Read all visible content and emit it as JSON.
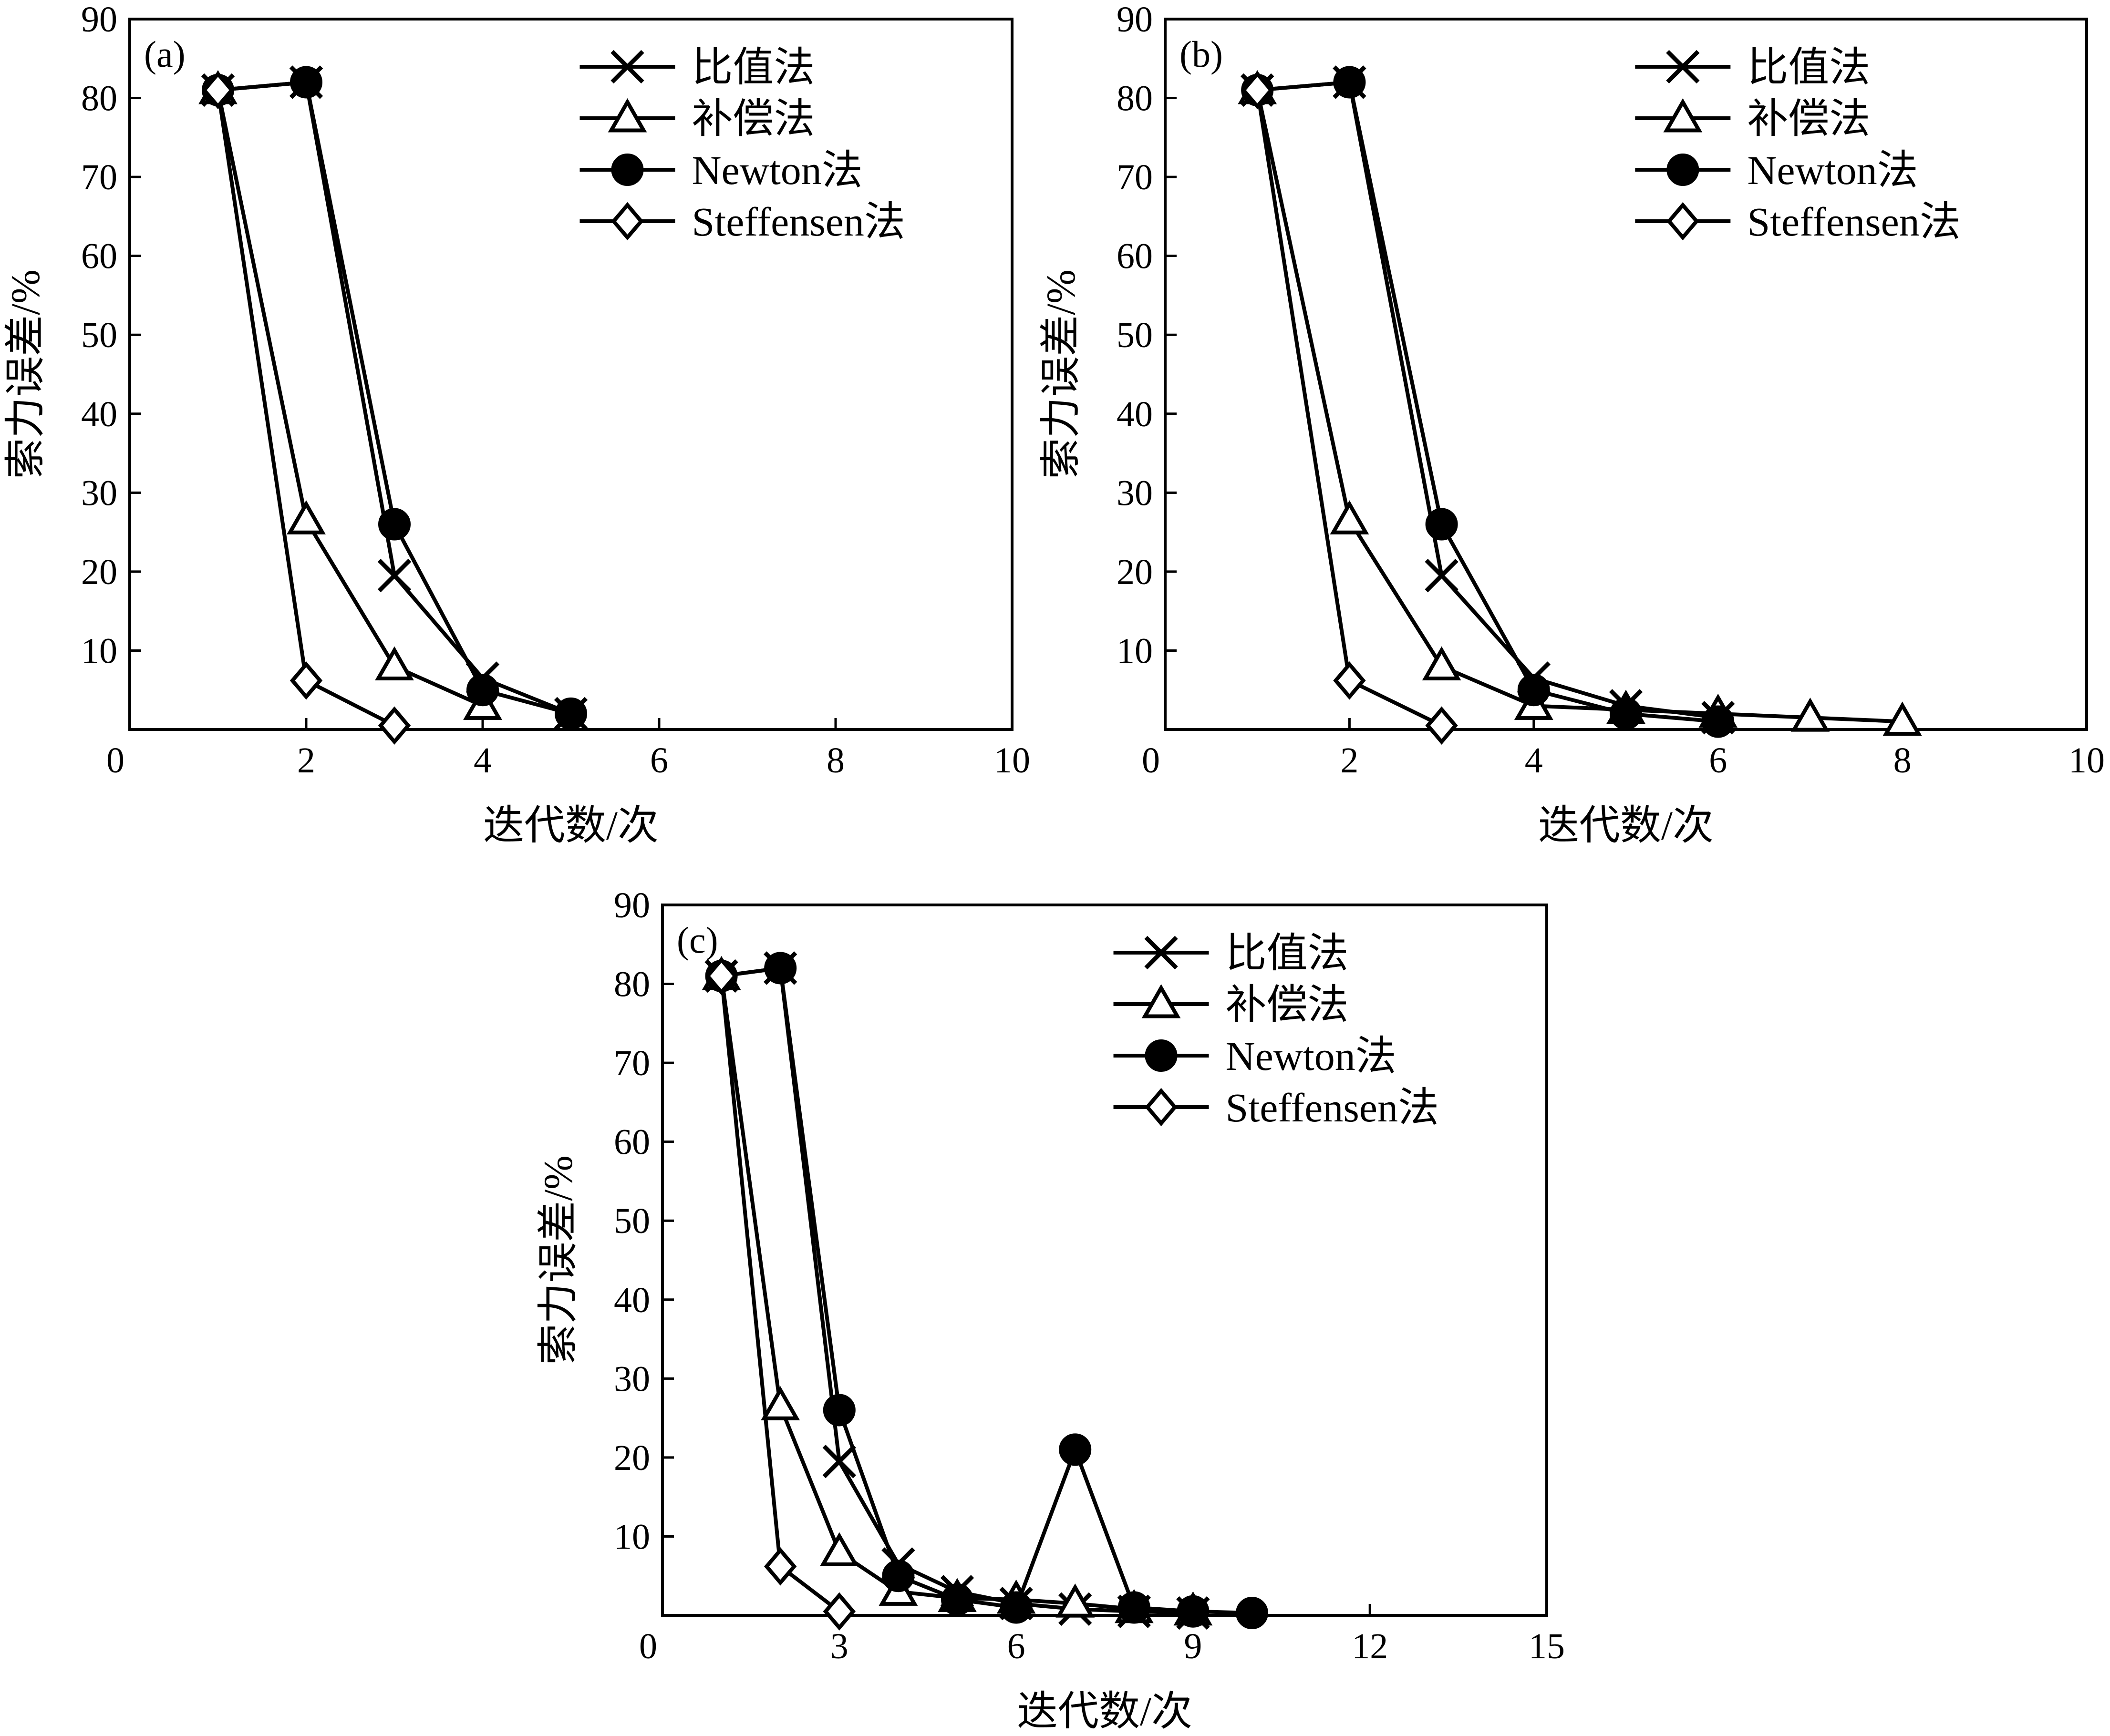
{
  "chart_data": [
    {
      "type": "line",
      "panel_label": "(a)",
      "xlabel": "迭代数/次",
      "ylabel": "索力误差/%",
      "xlim": [
        0,
        10
      ],
      "ylim": [
        0,
        90
      ],
      "xticks": [
        0,
        2,
        4,
        6,
        8,
        10
      ],
      "yticks": [
        0,
        10,
        20,
        30,
        40,
        50,
        60,
        70,
        80,
        90
      ],
      "legend_position": "top-right",
      "grid": false,
      "series": [
        {
          "name": "比值法",
          "marker": "x",
          "x": [
            1,
            2,
            3,
            4,
            5
          ],
          "y": [
            81,
            82,
            19.5,
            6.5,
            2
          ]
        },
        {
          "name": "补偿法",
          "marker": "triangle",
          "x": [
            1,
            2,
            3,
            4
          ],
          "y": [
            81,
            26.5,
            8,
            3
          ]
        },
        {
          "name": "Newton法",
          "marker": "filled-circle",
          "x": [
            1,
            2,
            3,
            4,
            5
          ],
          "y": [
            81,
            82,
            26,
            5,
            2
          ]
        },
        {
          "name": "Steffensen法",
          "marker": "diamond",
          "x": [
            1,
            2,
            3
          ],
          "y": [
            81,
            6.2,
            0.5
          ]
        }
      ]
    },
    {
      "type": "line",
      "panel_label": "(b)",
      "xlabel": "迭代数/次",
      "ylabel": "索力误差/%",
      "xlim": [
        0,
        10
      ],
      "ylim": [
        0,
        90
      ],
      "xticks": [
        0,
        2,
        4,
        6,
        8,
        10
      ],
      "yticks": [
        0,
        10,
        20,
        30,
        40,
        50,
        60,
        70,
        80,
        90
      ],
      "legend_position": "top-right",
      "grid": false,
      "series": [
        {
          "name": "比值法",
          "marker": "x",
          "x": [
            1,
            2,
            3,
            4,
            5,
            6
          ],
          "y": [
            81,
            82,
            19.5,
            6.5,
            3,
            1.5
          ]
        },
        {
          "name": "补偿法",
          "marker": "triangle",
          "x": [
            1,
            2,
            3,
            4,
            5,
            6,
            7,
            8
          ],
          "y": [
            81,
            26.5,
            8,
            3,
            2.5,
            2,
            1.5,
            1
          ]
        },
        {
          "name": "Newton法",
          "marker": "filled-circle",
          "x": [
            1,
            2,
            3,
            4,
            5,
            6
          ],
          "y": [
            81,
            82,
            26,
            5,
            2,
            1
          ]
        },
        {
          "name": "Steffensen法",
          "marker": "diamond",
          "x": [
            1,
            2,
            3
          ],
          "y": [
            81,
            6.2,
            0.5
          ]
        }
      ]
    },
    {
      "type": "line",
      "panel_label": "(c)",
      "xlabel": "迭代数/次",
      "ylabel": "索力误差/%",
      "xlim": [
        0,
        15
      ],
      "ylim": [
        0,
        90
      ],
      "xticks": [
        0,
        3,
        6,
        9,
        12,
        15
      ],
      "yticks": [
        0,
        10,
        20,
        30,
        40,
        50,
        60,
        70,
        80,
        90
      ],
      "legend_position": "top-right",
      "grid": false,
      "series": [
        {
          "name": "比值法",
          "marker": "x",
          "x": [
            1,
            2,
            3,
            4,
            5,
            6,
            7,
            8,
            9
          ],
          "y": [
            81,
            82,
            19.5,
            6.5,
            3,
            1.5,
            0.8,
            0.5,
            0.3
          ]
        },
        {
          "name": "补偿法",
          "marker": "triangle",
          "x": [
            1,
            2,
            3,
            4,
            5,
            6,
            7,
            8,
            9
          ],
          "y": [
            81,
            26.5,
            8,
            3,
            2.2,
            2,
            1.5,
            0.8,
            0.5
          ]
        },
        {
          "name": "Newton法",
          "marker": "filled-circle",
          "x": [
            1,
            2,
            3,
            4,
            5,
            6,
            7,
            8,
            9,
            10
          ],
          "y": [
            81,
            82,
            26,
            5,
            2,
            1,
            21,
            1,
            0.5,
            0.3
          ]
        },
        {
          "name": "Steffensen法",
          "marker": "diamond",
          "x": [
            1,
            2,
            3
          ],
          "y": [
            81,
            6.2,
            0.5
          ]
        }
      ]
    }
  ]
}
